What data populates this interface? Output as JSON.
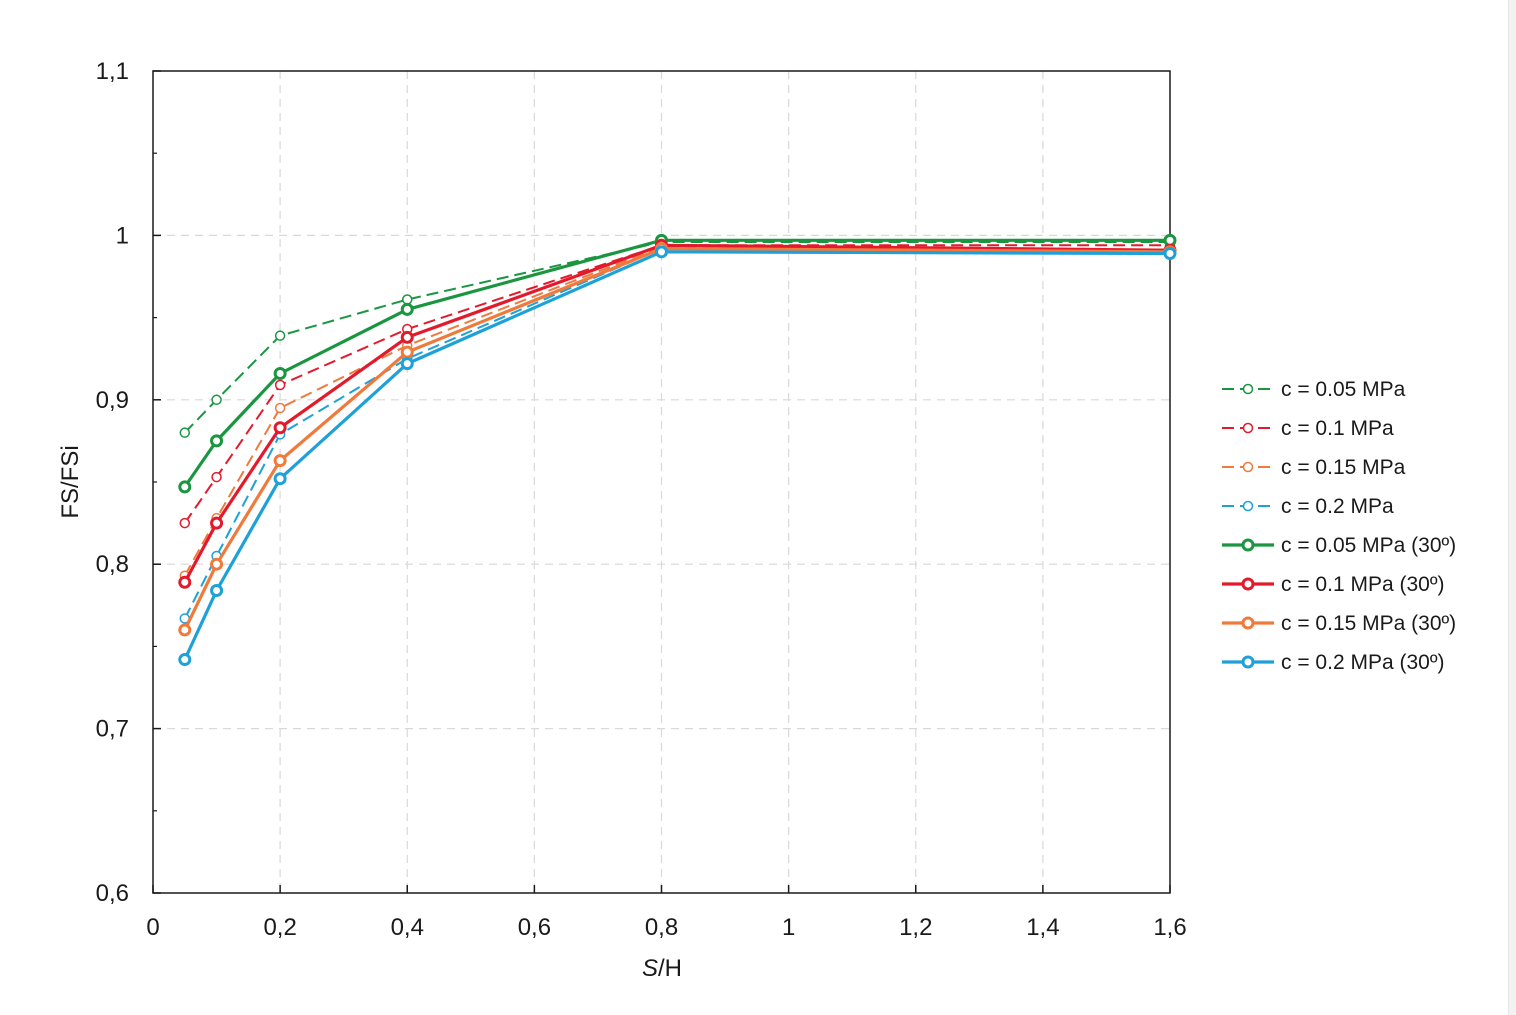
{
  "chart_data": {
    "type": "line",
    "title": "",
    "xlabel_italic": "S",
    "xlabel_rest": "/H",
    "ylabel": "FS/FSi",
    "xlim": [
      0,
      1.6
    ],
    "ylim": [
      0.6,
      1.1
    ],
    "xticks": [
      0,
      0.2,
      0.4,
      0.6,
      0.8,
      1,
      1.2,
      1.4,
      1.6
    ],
    "xtick_labels": [
      "0",
      "0,2",
      "0,4",
      "0,6",
      "0,8",
      "1",
      "1,2",
      "1,4",
      "1,6"
    ],
    "yticks": [
      0.6,
      0.7,
      0.8,
      0.9,
      1.0,
      1.1
    ],
    "ytick_labels": [
      "0,6",
      "0,7",
      "0,8",
      "0,9",
      "1",
      "1,1"
    ],
    "grid": true,
    "legend_position": "right",
    "series": [
      {
        "name": "c = 0.05 MPa",
        "style": "dashed",
        "color": "#1a9641",
        "x": [
          0.05,
          0.1,
          0.2,
          0.4,
          0.8,
          1.6
        ],
        "y": [
          0.88,
          0.9,
          0.939,
          0.961,
          0.996,
          0.996
        ]
      },
      {
        "name": "c = 0.1 MPa",
        "style": "dashed",
        "color": "#e31a2c",
        "x": [
          0.05,
          0.1,
          0.2,
          0.4,
          0.8,
          1.6
        ],
        "y": [
          0.825,
          0.853,
          0.909,
          0.943,
          0.994,
          0.994
        ]
      },
      {
        "name": "c = 0.15 MPa",
        "style": "dashed",
        "color": "#f07a3c",
        "x": [
          0.05,
          0.1,
          0.2,
          0.4,
          0.8,
          1.6
        ],
        "y": [
          0.793,
          0.828,
          0.895,
          0.933,
          0.993,
          0.991
        ]
      },
      {
        "name": "c = 0.2 MPa",
        "style": "dashed",
        "color": "#1ea0d8",
        "x": [
          0.05,
          0.1,
          0.2,
          0.4,
          0.8,
          1.6
        ],
        "y": [
          0.767,
          0.805,
          0.879,
          0.925,
          0.992,
          0.989
        ]
      },
      {
        "name": "c = 0.05 MPa (30º)",
        "style": "solid",
        "color": "#1a9641",
        "x": [
          0.05,
          0.1,
          0.2,
          0.4,
          0.8,
          1.6
        ],
        "y": [
          0.847,
          0.875,
          0.916,
          0.955,
          0.997,
          0.997
        ]
      },
      {
        "name": "c = 0.1 MPa (30º)",
        "style": "solid",
        "color": "#e31a2c",
        "x": [
          0.05,
          0.1,
          0.2,
          0.4,
          0.8,
          1.6
        ],
        "y": [
          0.789,
          0.825,
          0.883,
          0.938,
          0.994,
          0.991
        ]
      },
      {
        "name": "c = 0.15 MPa (30º)",
        "style": "solid",
        "color": "#f07a3c",
        "x": [
          0.05,
          0.1,
          0.2,
          0.4,
          0.8,
          1.6
        ],
        "y": [
          0.76,
          0.8,
          0.863,
          0.929,
          0.992,
          0.99
        ]
      },
      {
        "name": "c = 0.2 MPa (30º)",
        "style": "solid",
        "color": "#1ea0d8",
        "x": [
          0.05,
          0.1,
          0.2,
          0.4,
          0.8,
          1.6
        ],
        "y": [
          0.742,
          0.784,
          0.852,
          0.922,
          0.99,
          0.989
        ]
      }
    ]
  }
}
